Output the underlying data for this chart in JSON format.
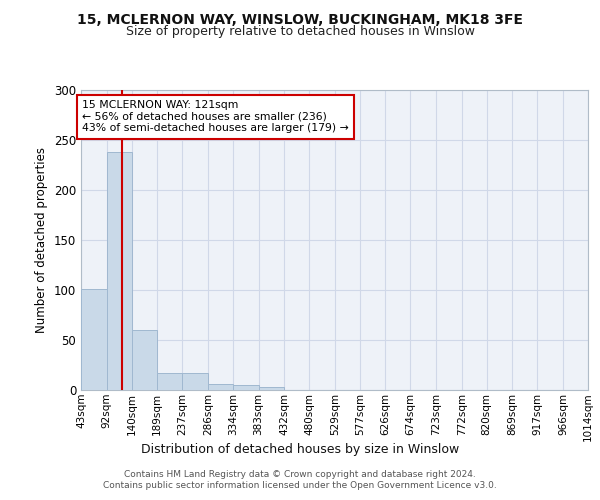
{
  "title1": "15, MCLERNON WAY, WINSLOW, BUCKINGHAM, MK18 3FE",
  "title2": "Size of property relative to detached houses in Winslow",
  "xlabel": "Distribution of detached houses by size in Winslow",
  "ylabel": "Number of detached properties",
  "bin_edges": [
    43,
    92,
    140,
    189,
    237,
    286,
    334,
    383,
    432,
    480,
    529,
    577,
    626,
    674,
    723,
    772,
    820,
    869,
    917,
    966,
    1014
  ],
  "bar_heights": [
    101,
    238,
    60,
    17,
    17,
    6,
    5,
    3,
    0,
    0,
    0,
    0,
    0,
    0,
    0,
    0,
    0,
    0,
    0,
    0
  ],
  "bar_color": "#c9d9e8",
  "bar_edgecolor": "#a0b8d0",
  "vline_x": 121,
  "vline_color": "#cc0000",
  "annotation_text": "15 MCLERNON WAY: 121sqm\n← 56% of detached houses are smaller (236)\n43% of semi-detached houses are larger (179) →",
  "annotation_box_edgecolor": "#cc0000",
  "ylim": [
    0,
    300
  ],
  "yticks": [
    0,
    50,
    100,
    150,
    200,
    250,
    300
  ],
  "tick_labels": [
    "43sqm",
    "92sqm",
    "140sqm",
    "189sqm",
    "237sqm",
    "286sqm",
    "334sqm",
    "383sqm",
    "432sqm",
    "480sqm",
    "529sqm",
    "577sqm",
    "626sqm",
    "674sqm",
    "723sqm",
    "772sqm",
    "820sqm",
    "869sqm",
    "917sqm",
    "966sqm",
    "1014sqm"
  ],
  "footer1": "Contains HM Land Registry data © Crown copyright and database right 2024.",
  "footer2": "Contains public sector information licensed under the Open Government Licence v3.0.",
  "plot_bg_color": "#eef2f8",
  "grid_color": "#d0d8e8",
  "fig_bg_color": "#ffffff"
}
